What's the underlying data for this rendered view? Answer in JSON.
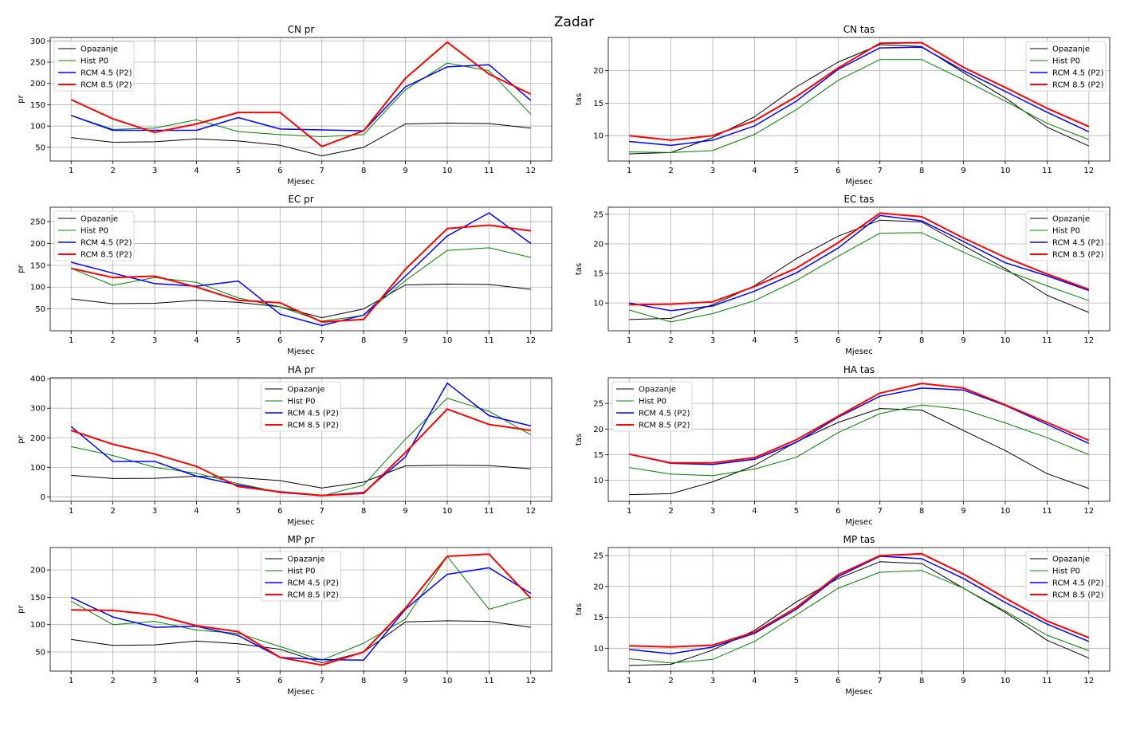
{
  "suptitle": "Zadar",
  "legend_labels": [
    "Opazanje",
    "Hist P0",
    "RCM 4.5 (P2)",
    "RCM 8.5 (P2)"
  ],
  "colors": {
    "Opazanje": "#000000",
    "Hist P0": "#008000",
    "RCM 4.5 (P2)": "#0000ff",
    "RCM 8.5 (P2)": "#ff0000",
    "grid": "#b0b0b0"
  },
  "chart_data": [
    {
      "type": "line",
      "title": "CN pr",
      "xlabel": "Mjesec",
      "ylabel": "pr",
      "x": [
        1,
        2,
        3,
        4,
        5,
        6,
        7,
        8,
        9,
        10,
        11,
        12
      ],
      "ylim": [
        18,
        308
      ],
      "yticks": [
        50,
        100,
        150,
        200,
        250,
        300
      ],
      "grid": true,
      "legend": "upper-left",
      "series": [
        {
          "name": "Opazanje",
          "values": [
            73,
            62,
            63,
            70,
            65,
            55,
            30,
            50,
            105,
            107,
            106,
            95
          ]
        },
        {
          "name": "Hist P0",
          "values": [
            125,
            92,
            95,
            115,
            87,
            80,
            75,
            80,
            185,
            248,
            230,
            128
          ]
        },
        {
          "name": "RCM 4.5 (P2)",
          "values": [
            125,
            90,
            90,
            90,
            120,
            93,
            91,
            89,
            192,
            239,
            244,
            160
          ]
        },
        {
          "name": "RCM 8.5 (P2)",
          "values": [
            162,
            117,
            85,
            105,
            132,
            132,
            52,
            89,
            212,
            297,
            222,
            175
          ]
        }
      ]
    },
    {
      "type": "line",
      "title": "CN tas",
      "xlabel": "Mjesec",
      "ylabel": "tas",
      "x": [
        1,
        2,
        3,
        4,
        5,
        6,
        7,
        8,
        9,
        10,
        11,
        12
      ],
      "ylim": [
        6.1,
        25.1
      ],
      "yticks": [
        10,
        15,
        20
      ],
      "grid": true,
      "legend": "upper-right",
      "series": [
        {
          "name": "Opazanje",
          "values": [
            7.2,
            7.4,
            9.7,
            12.9,
            17.5,
            21.3,
            24.0,
            23.7,
            19.7,
            15.8,
            11.3,
            8.4
          ]
        },
        {
          "name": "Hist P0",
          "values": [
            7.5,
            7.4,
            7.7,
            10.2,
            14.0,
            18.5,
            21.7,
            21.7,
            18.6,
            15.3,
            11.9,
            9.4
          ]
        },
        {
          "name": "RCM 4.5 (P2)",
          "values": [
            9.1,
            8.5,
            9.3,
            11.5,
            15.3,
            20.2,
            23.5,
            23.6,
            20.0,
            16.8,
            13.6,
            10.6
          ]
        },
        {
          "name": "RCM 8.5 (P2)",
          "values": [
            10.0,
            9.3,
            10.0,
            12.3,
            16.0,
            20.4,
            24.2,
            24.3,
            20.5,
            17.4,
            14.2,
            11.4
          ]
        }
      ]
    },
    {
      "type": "line",
      "title": "EC pr",
      "xlabel": "Mjesec",
      "ylabel": "pr",
      "x": [
        1,
        2,
        3,
        4,
        5,
        6,
        7,
        8,
        9,
        10,
        11,
        12
      ],
      "ylim": [
        0,
        283
      ],
      "yticks": [
        50,
        100,
        150,
        200,
        250
      ],
      "grid": true,
      "legend": "upper-left",
      "series": [
        {
          "name": "Opazanje",
          "values": [
            73,
            62,
            63,
            70,
            65,
            55,
            30,
            50,
            105,
            107,
            106,
            95
          ]
        },
        {
          "name": "Hist P0",
          "values": [
            143,
            104,
            122,
            111,
            75,
            55,
            22,
            35,
            115,
            184,
            190,
            168
          ]
        },
        {
          "name": "RCM 4.5 (P2)",
          "values": [
            157,
            132,
            108,
            102,
            114,
            38,
            12,
            36,
            125,
            217,
            270,
            200
          ]
        },
        {
          "name": "RCM 8.5 (P2)",
          "values": [
            143,
            122,
            125,
            100,
            70,
            64,
            20,
            26,
            141,
            234,
            242,
            229
          ]
        }
      ]
    },
    {
      "type": "line",
      "title": "EC tas",
      "xlabel": "Mjesec",
      "ylabel": "tas",
      "x": [
        1,
        2,
        3,
        4,
        5,
        6,
        7,
        8,
        9,
        10,
        11,
        12
      ],
      "ylim": [
        5.3,
        26.2
      ],
      "yticks": [
        10,
        15,
        20,
        25
      ],
      "grid": true,
      "legend": "upper-right",
      "series": [
        {
          "name": "Opazanje",
          "values": [
            7.2,
            7.4,
            9.7,
            12.9,
            17.5,
            21.3,
            24.0,
            23.7,
            19.7,
            15.8,
            11.3,
            8.4
          ]
        },
        {
          "name": "Hist P0",
          "values": [
            8.8,
            6.8,
            8.2,
            10.4,
            13.8,
            17.9,
            21.8,
            21.9,
            18.6,
            15.5,
            12.9,
            10.4
          ]
        },
        {
          "name": "RCM 4.5 (P2)",
          "values": [
            10.0,
            8.7,
            9.5,
            12.0,
            15.1,
            19.3,
            24.8,
            23.9,
            20.4,
            16.8,
            14.6,
            12.1
          ]
        },
        {
          "name": "RCM 8.5 (P2)",
          "values": [
            9.7,
            9.8,
            10.2,
            12.8,
            15.9,
            20.2,
            25.2,
            24.6,
            21.0,
            17.7,
            14.9,
            12.3
          ]
        }
      ]
    },
    {
      "type": "line",
      "title": "HA pr",
      "xlabel": "Mjesec",
      "ylabel": "pr",
      "x": [
        1,
        2,
        3,
        4,
        5,
        6,
        7,
        8,
        9,
        10,
        11,
        12
      ],
      "ylim": [
        -15,
        403
      ],
      "yticks": [
        0,
        100,
        200,
        300,
        400
      ],
      "grid": true,
      "legend": "upper-center",
      "series": [
        {
          "name": "Opazanje",
          "values": [
            73,
            62,
            63,
            70,
            65,
            55,
            30,
            50,
            105,
            107,
            106,
            95
          ]
        },
        {
          "name": "Hist P0",
          "values": [
            170,
            140,
            100,
            80,
            45,
            15,
            3,
            40,
            195,
            334,
            290,
            210
          ]
        },
        {
          "name": "RCM 4.5 (P2)",
          "values": [
            238,
            120,
            120,
            70,
            40,
            15,
            5,
            15,
            135,
            385,
            275,
            240
          ]
        },
        {
          "name": "RCM 8.5 (P2)",
          "values": [
            225,
            178,
            145,
            103,
            35,
            17,
            5,
            12,
            150,
            297,
            245,
            225
          ]
        }
      ]
    },
    {
      "type": "line",
      "title": "HA tas",
      "xlabel": "Mjesec",
      "ylabel": "tas",
      "x": [
        1,
        2,
        3,
        4,
        5,
        6,
        7,
        8,
        9,
        10,
        11,
        12
      ],
      "ylim": [
        5.9,
        30.0
      ],
      "yticks": [
        10,
        15,
        20,
        25
      ],
      "grid": true,
      "legend": "upper-left",
      "series": [
        {
          "name": "Opazanje",
          "values": [
            7.2,
            7.4,
            9.7,
            12.9,
            17.5,
            21.3,
            24.0,
            23.7,
            19.7,
            15.8,
            11.3,
            8.4
          ]
        },
        {
          "name": "Hist P0",
          "values": [
            12.5,
            11.2,
            10.9,
            12.2,
            14.5,
            19.3,
            23.0,
            24.7,
            23.8,
            21.2,
            18.3,
            15.0
          ]
        },
        {
          "name": "RCM 4.5 (P2)",
          "values": [
            15.1,
            13.3,
            13.1,
            14.1,
            17.4,
            22.3,
            26.4,
            28.0,
            27.6,
            24.6,
            20.9,
            17.2
          ]
        },
        {
          "name": "RCM 8.5 (P2)",
          "values": [
            15.1,
            13.4,
            13.4,
            14.4,
            17.9,
            22.5,
            27.0,
            28.9,
            28.0,
            24.7,
            21.3,
            17.8
          ]
        }
      ]
    },
    {
      "type": "line",
      "title": "MP pr",
      "xlabel": "Mjesec",
      "ylabel": "pr",
      "x": [
        1,
        2,
        3,
        4,
        5,
        6,
        7,
        8,
        9,
        10,
        11,
        12
      ],
      "ylim": [
        15,
        241
      ],
      "yticks": [
        50,
        100,
        150,
        200
      ],
      "grid": true,
      "legend": "upper-center",
      "series": [
        {
          "name": "Opazanje",
          "values": [
            73,
            62,
            63,
            70,
            65,
            55,
            30,
            50,
            105,
            107,
            106,
            95
          ]
        },
        {
          "name": "Hist P0",
          "values": [
            143,
            100,
            106,
            90,
            84,
            60,
            35,
            66,
            110,
            225,
            128,
            150
          ]
        },
        {
          "name": "RCM 4.5 (P2)",
          "values": [
            150,
            114,
            95,
            97,
            80,
            40,
            36,
            35,
            128,
            192,
            204,
            157
          ]
        },
        {
          "name": "RCM 8.5 (P2)",
          "values": [
            127,
            126,
            118,
            98,
            87,
            40,
            26,
            50,
            130,
            225,
            229,
            148
          ]
        }
      ]
    },
    {
      "type": "line",
      "title": "MP tas",
      "xlabel": "Mjesec",
      "ylabel": "tas",
      "x": [
        1,
        2,
        3,
        4,
        5,
        6,
        7,
        8,
        9,
        10,
        11,
        12
      ],
      "ylim": [
        6.3,
        26.3
      ],
      "yticks": [
        10,
        15,
        20,
        25
      ],
      "grid": true,
      "legend": "upper-right",
      "series": [
        {
          "name": "Opazanje",
          "values": [
            7.2,
            7.4,
            9.7,
            12.9,
            17.5,
            21.3,
            24.0,
            23.7,
            19.7,
            15.8,
            11.3,
            8.4
          ]
        },
        {
          "name": "Hist P0",
          "values": [
            8.3,
            7.6,
            8.2,
            11.1,
            15.4,
            19.7,
            22.3,
            22.6,
            19.7,
            16.0,
            12.1,
            9.6
          ]
        },
        {
          "name": "RCM 4.5 (P2)",
          "values": [
            9.8,
            9.1,
            10.2,
            12.4,
            16.3,
            21.6,
            24.9,
            24.5,
            21.3,
            17.4,
            13.9,
            11.1
          ]
        },
        {
          "name": "RCM 8.5 (P2)",
          "values": [
            10.4,
            10.2,
            10.5,
            12.6,
            16.6,
            21.9,
            25.0,
            25.3,
            22.0,
            18.1,
            14.4,
            11.7
          ]
        }
      ]
    }
  ]
}
